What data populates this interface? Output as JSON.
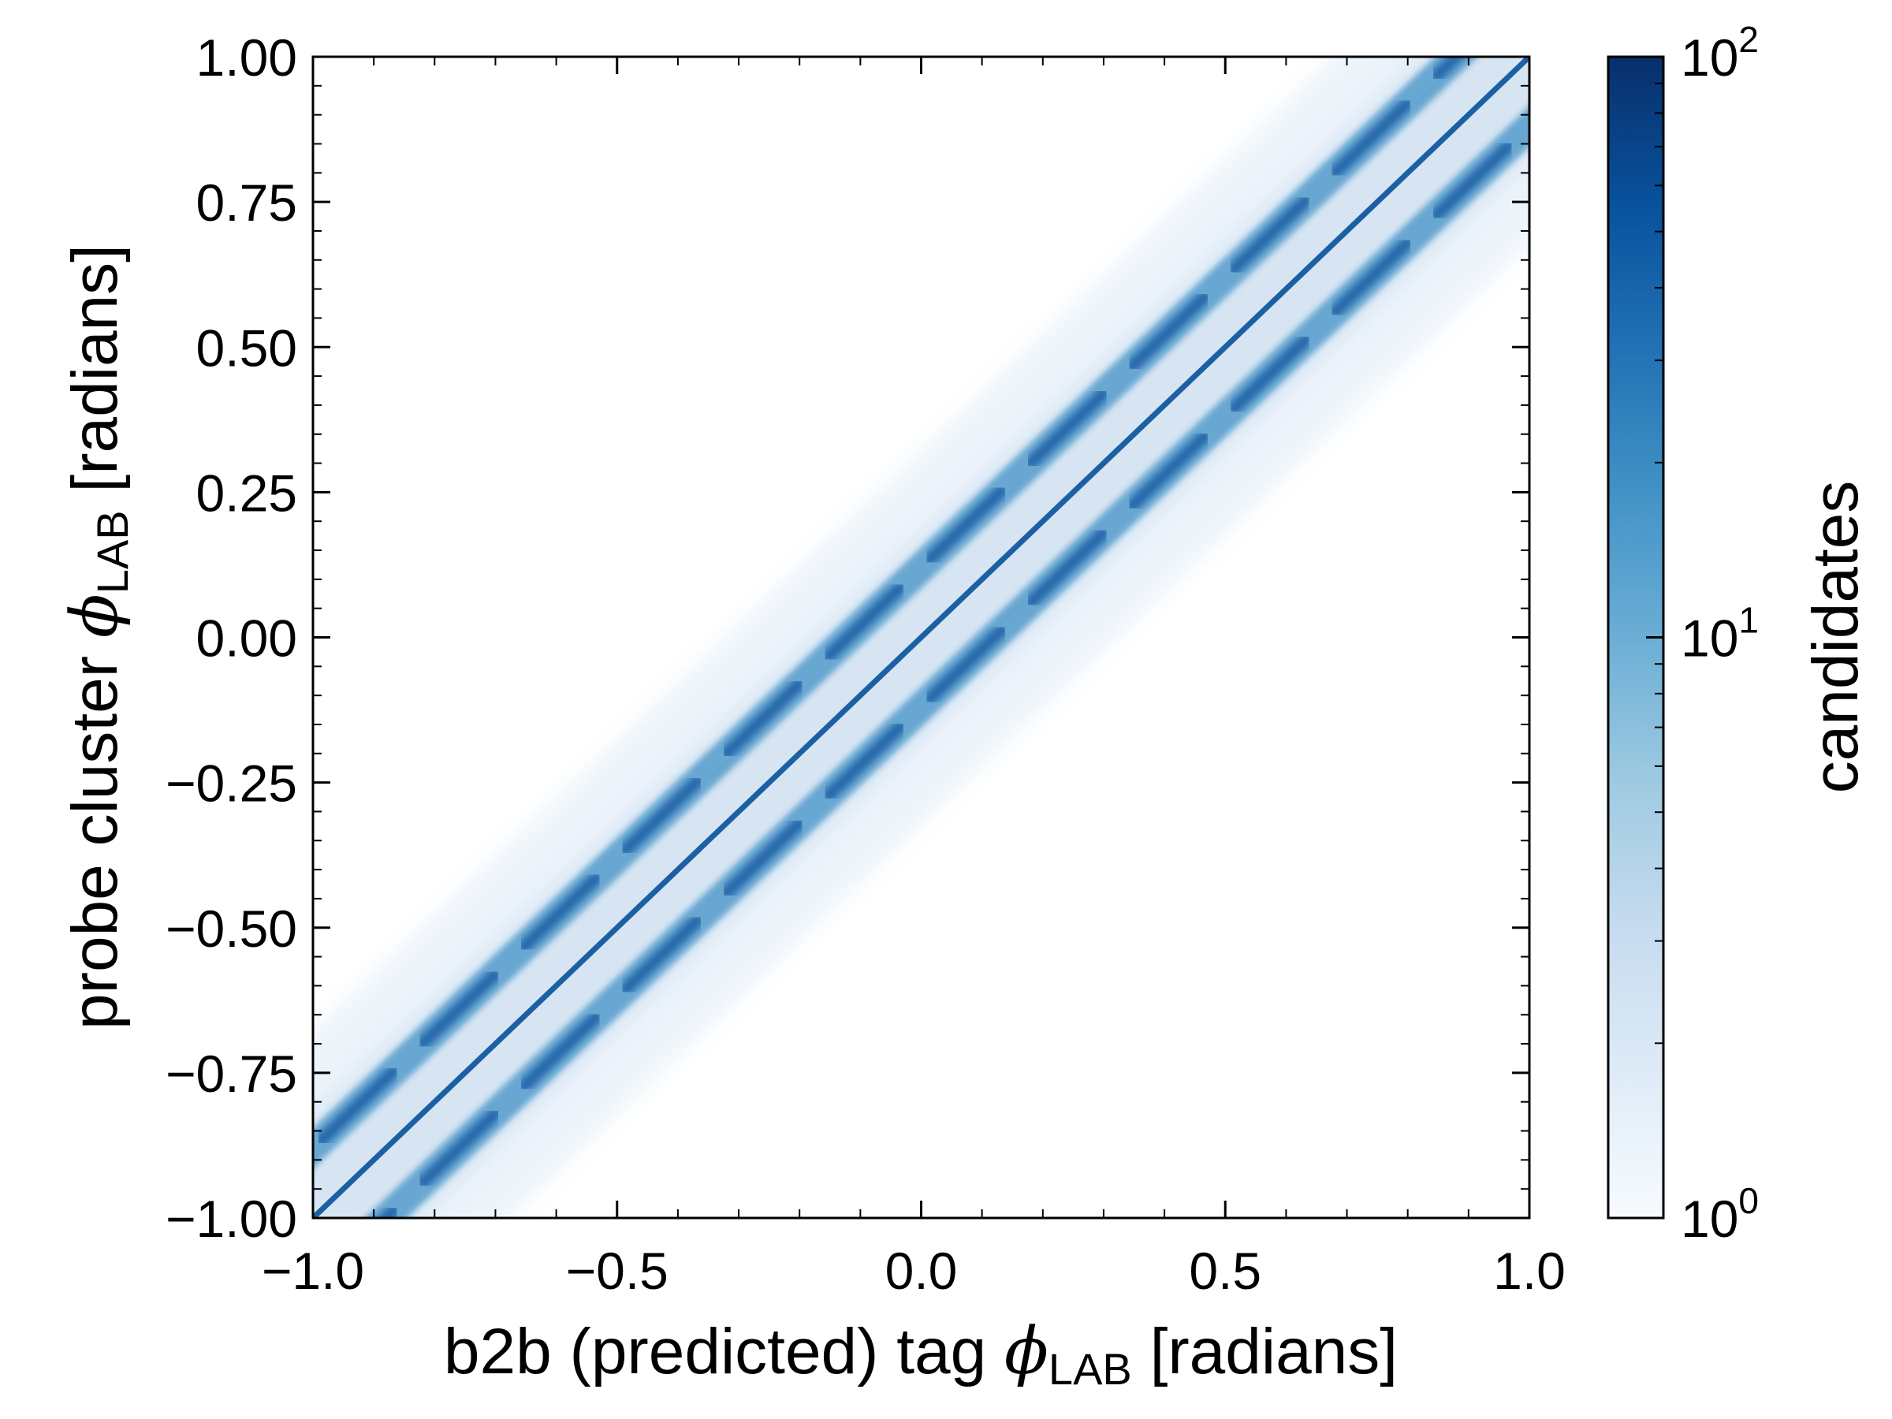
{
  "chart_data": {
    "type": "heatmap",
    "title": "",
    "xlabel": {
      "prefix": "b2b (predicted) tag ",
      "symbol": "ϕ",
      "subscript": "LAB",
      "suffix": " [radians]"
    },
    "ylabel": {
      "prefix": "probe cluster ",
      "symbol": "ϕ",
      "subscript": "LAB",
      "suffix": " [radians]"
    },
    "xlim": [
      -1.0,
      1.0
    ],
    "ylim": [
      -1.0,
      1.0
    ],
    "x_ticks": [
      -1.0,
      -0.5,
      0.0,
      0.5,
      1.0
    ],
    "x_tick_labels": [
      "−1.0",
      "−0.5",
      "0.0",
      "0.5",
      "1.0"
    ],
    "y_ticks": [
      1.0,
      0.75,
      0.5,
      0.25,
      0.0,
      -0.25,
      -0.5,
      -0.75,
      -1.0
    ],
    "y_tick_labels": [
      "1.00",
      "0.75",
      "0.50",
      "0.25",
      "0.00",
      "−0.25",
      "−0.50",
      "−0.75",
      "−1.00"
    ],
    "grid": false,
    "colormap": "Blues",
    "colorscale": "log",
    "colorbar": {
      "label": "candidates",
      "range": [
        1,
        100
      ],
      "ticks": [
        {
          "value": 1,
          "base": "10",
          "exponent": "0"
        },
        {
          "value": 10,
          "base": "10",
          "exponent": "1"
        },
        {
          "value": 100,
          "base": "10",
          "exponent": "2"
        }
      ],
      "colors": [
        "#f7fbff",
        "#deebf7",
        "#c6dbef",
        "#9ecae1",
        "#6baed6",
        "#4292c6",
        "#2171b5",
        "#08519c",
        "#08306b"
      ]
    },
    "band_offsets_dy": [
      0.0,
      0.12,
      -0.12
    ],
    "diffuse_halfwidth_dy": 0.32,
    "annotations": []
  }
}
